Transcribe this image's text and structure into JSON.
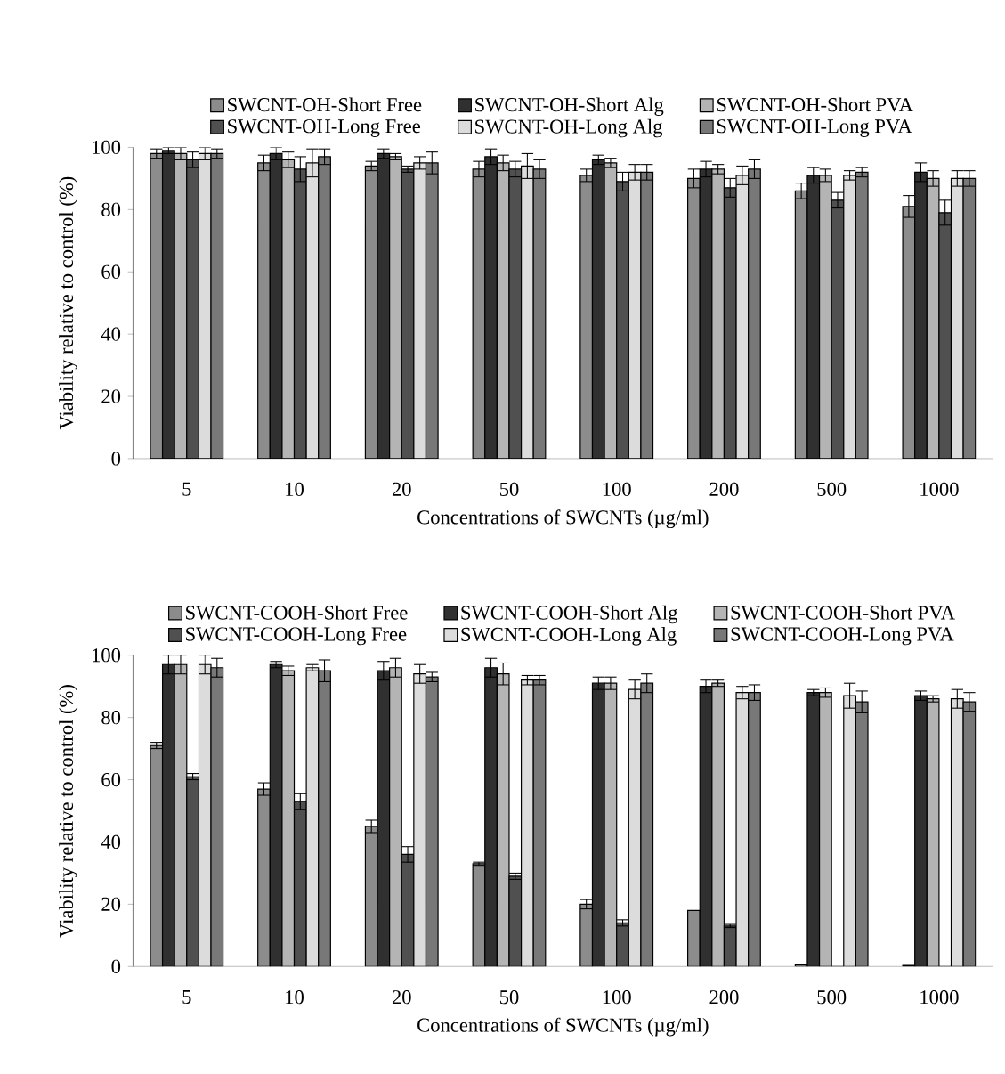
{
  "chart_data": [
    {
      "type": "bar",
      "categories": [
        "5",
        "10",
        "20",
        "50",
        "100",
        "200",
        "500",
        "1000"
      ],
      "xlabel": "Concentrations of SWCNTs (µg/ml)",
      "ylabel": "Viability relative to control (%)",
      "ylim": [
        0,
        100
      ],
      "yticks": [
        0,
        20,
        40,
        60,
        80,
        100
      ],
      "legend": "top",
      "grid": false,
      "series": [
        {
          "name": "SWCNT-OH-Short Free",
          "color": "#8c8c8c",
          "values": [
            98,
            95,
            94,
            93,
            91,
            90,
            86,
            81
          ],
          "errors": [
            1.5,
            2.5,
            1.5,
            2.5,
            2,
            3,
            2.5,
            3.5
          ]
        },
        {
          "name": "SWCNT-OH-Short Alg",
          "color": "#303030",
          "values": [
            99,
            98,
            98,
            97,
            96,
            93,
            91,
            92
          ],
          "errors": [
            1,
            2,
            1.5,
            2.5,
            1.5,
            2.5,
            2.5,
            3
          ]
        },
        {
          "name": "SWCNT-OH-Short PVA",
          "color": "#b4b4b4",
          "values": [
            98,
            96,
            97,
            95,
            95,
            93,
            91,
            90
          ],
          "errors": [
            2,
            2.5,
            1,
            2.5,
            1.5,
            1.5,
            2,
            2.5
          ]
        },
        {
          "name": "SWCNT-OH-Long Free",
          "color": "#505050",
          "values": [
            96,
            93,
            93,
            93,
            89,
            87,
            83,
            79
          ],
          "errors": [
            2.5,
            4,
            1,
            2.5,
            3,
            3,
            2.5,
            4
          ]
        },
        {
          "name": "SWCNT-OH-Long Alg",
          "color": "#dcdcdc",
          "values": [
            98,
            95,
            95,
            94,
            92,
            91,
            91,
            90
          ],
          "errors": [
            2,
            4.5,
            2,
            4,
            2.5,
            3,
            1.5,
            2.5
          ]
        },
        {
          "name": "SWCNT-OH-Long PVA",
          "color": "#787878",
          "values": [
            98,
            97,
            95,
            93,
            92,
            93,
            92,
            90
          ],
          "errors": [
            1.5,
            2.5,
            3.5,
            3,
            2.5,
            3,
            1.5,
            2.5
          ]
        }
      ]
    },
    {
      "type": "bar",
      "categories": [
        "5",
        "10",
        "20",
        "50",
        "100",
        "200",
        "500",
        "1000"
      ],
      "xlabel": "Concentrations of SWCNTs (µg/ml)",
      "ylabel": "Viability relative to control (%)",
      "ylim": [
        0,
        100
      ],
      "yticks": [
        0,
        20,
        40,
        60,
        80,
        100
      ],
      "legend": "top",
      "grid": false,
      "series": [
        {
          "name": "SWCNT-COOH-Short Free",
          "color": "#8c8c8c",
          "values": [
            71,
            57,
            45,
            33,
            20,
            18,
            0.5,
            0.3
          ],
          "errors": [
            1,
            2,
            2,
            0.5,
            1.5,
            null,
            null,
            null
          ]
        },
        {
          "name": "SWCNT-COOH-Short Alg",
          "color": "#303030",
          "values": [
            97,
            97,
            95,
            96,
            91,
            90,
            88,
            87
          ],
          "errors": [
            3,
            1,
            3,
            3,
            2,
            2,
            1,
            1.5
          ]
        },
        {
          "name": "SWCNT-COOH-Short PVA",
          "color": "#b4b4b4",
          "values": [
            97,
            95,
            96,
            94,
            91,
            91,
            88,
            86
          ],
          "errors": [
            3,
            1.5,
            3,
            3.5,
            2,
            1,
            1.5,
            1
          ]
        },
        {
          "name": "SWCNT-COOH-Long Free",
          "color": "#505050",
          "values": [
            61,
            53,
            36,
            29,
            14,
            13,
            0,
            0
          ],
          "errors": [
            1,
            2.5,
            2.5,
            1,
            1,
            0.5,
            0,
            0
          ]
        },
        {
          "name": "SWCNT-COOH-Long Alg",
          "color": "#dcdcdc",
          "values": [
            97,
            96,
            94,
            92,
            89,
            88,
            87,
            86
          ],
          "errors": [
            3,
            1,
            3,
            1.5,
            3,
            2,
            4,
            3
          ]
        },
        {
          "name": "SWCNT-COOH-Long PVA",
          "color": "#787878",
          "values": [
            96,
            95,
            93,
            92,
            91,
            88,
            85,
            85
          ],
          "errors": [
            3,
            3.5,
            1.5,
            1.5,
            3,
            2.5,
            3.5,
            3
          ]
        }
      ]
    }
  ]
}
